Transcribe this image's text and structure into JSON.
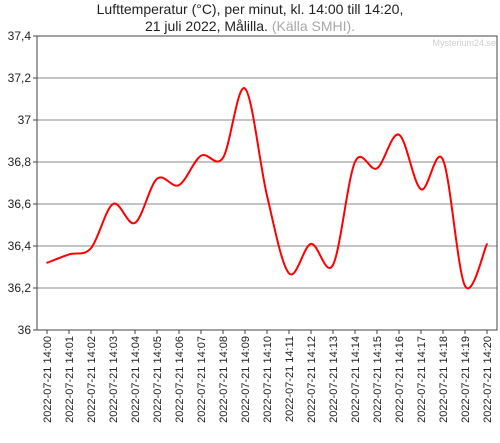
{
  "title_line1": "Lufttemperatur (°C), per minut, kl. 14:00 till 14:20,",
  "title_line2": "21 juli 2022, Målilla.",
  "title_source": "(Källa SMHI).",
  "watermark": "Mysterium24.se",
  "colors": {
    "series": "#ff0000",
    "grid": "#888888",
    "axis": "#444444",
    "text": "#222222"
  },
  "chart_data": {
    "type": "line",
    "ylim": [
      36,
      37.4
    ],
    "ytick_labels": [
      "36",
      "36,2",
      "36,4",
      "36,6",
      "36,8",
      "37",
      "37,2",
      "37,4"
    ],
    "xtick_labels": [
      "2022-07-21 14:00",
      "2022-07-21 14:01",
      "2022-07-21 14:02",
      "2022-07-21 14:03",
      "2022-07-21 14:04",
      "2022-07-21 14:05",
      "2022-07-21 14:06",
      "2022-07-21 14:07",
      "2022-07-21 14:08",
      "2022-07-21 14:09",
      "2022-07-21 14:10",
      "2022-07-21 14:11",
      "2022-07-21 14:12",
      "2022-07-21 14:13",
      "2022-07-21 14:14",
      "2022-07-21 14:15",
      "2022-07-21 14:16",
      "2022-07-21 14:17",
      "2022-07-21 14:18",
      "2022-07-21 14:19",
      "2022-07-21 14:20"
    ],
    "grid": "horizontal",
    "legend": "none",
    "series": [
      {
        "x": [
          "14:00",
          "14:01",
          "14:02",
          "14:03",
          "14:04",
          "14:05",
          "14:06",
          "14:07",
          "14:08",
          "14:09",
          "14:10",
          "14:11",
          "14:12",
          "14:13",
          "14:14",
          "14:15",
          "14:16",
          "14:17",
          "14:18",
          "14:19",
          "14:20"
        ],
        "y": [
          36.32,
          36.36,
          36.39,
          36.6,
          36.51,
          36.72,
          36.69,
          36.83,
          36.82,
          37.15,
          36.64,
          36.27,
          36.41,
          36.31,
          36.8,
          36.77,
          36.93,
          36.67,
          36.81,
          36.21,
          36.41
        ]
      }
    ]
  }
}
